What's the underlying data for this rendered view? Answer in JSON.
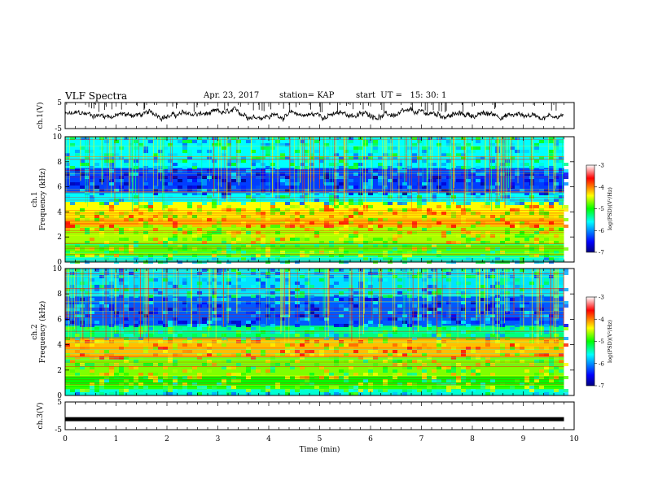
{
  "header": {
    "title": "VLF Spectra",
    "date": "Apr. 23, 2017",
    "station": "station= KAP",
    "start": "start  UT =   15: 30: 1"
  },
  "chart_data": [
    {
      "type": "line",
      "panel": "ch1 waveform",
      "ylabel": "ch.1(V)",
      "ylim": [
        -5,
        5
      ],
      "yticks": [
        5,
        -5
      ],
      "xlim": [
        0,
        10
      ],
      "series": [
        {
          "color": "#000000",
          "approx_mean": 0.3,
          "approx_amplitude": 1.5
        }
      ]
    },
    {
      "type": "heatmap",
      "panel": "ch1 spectrogram",
      "ylabel": "ch.1\nFrequency (kHz)",
      "ylim": [
        0,
        10
      ],
      "yticks": [
        0,
        2,
        4,
        6,
        8,
        10
      ],
      "colorbar": {
        "label": "log(PSD)(V²/Hz)",
        "range": [
          -7,
          -3
        ],
        "ticks": [
          -3,
          -4,
          -5,
          -6,
          -7
        ]
      },
      "bands": [
        {
          "f_range": [
            0,
            0.5
          ],
          "level": -5.5
        },
        {
          "f_range": [
            0.5,
            1.5
          ],
          "level": -4.8
        },
        {
          "f_range": [
            1.5,
            2.8
          ],
          "level": -4.6
        },
        {
          "f_range": [
            2.8,
            3.5
          ],
          "level": -4.2
        },
        {
          "f_range": [
            3.5,
            4.8
          ],
          "level": -4.4
        },
        {
          "f_range": [
            4.8,
            5.5
          ],
          "level": -5.6
        },
        {
          "f_range": [
            5.5,
            7.5
          ],
          "level": -6.3
        },
        {
          "f_range": [
            7.5,
            10
          ],
          "level": -5.6
        }
      ]
    },
    {
      "type": "heatmap",
      "panel": "ch2 spectrogram",
      "ylabel": "ch.2\nFrequency (kHz)",
      "ylim": [
        0,
        10
      ],
      "yticks": [
        0,
        2,
        4,
        6,
        8,
        10
      ],
      "colorbar": {
        "label": "log(PSD)(V²/Hz)",
        "range": [
          -7,
          -3
        ],
        "ticks": [
          -3,
          -4,
          -5,
          -6,
          -7
        ]
      },
      "bands": [
        {
          "f_range": [
            0,
            0.5
          ],
          "level": -5.5
        },
        {
          "f_range": [
            0.5,
            1.5
          ],
          "level": -5.0
        },
        {
          "f_range": [
            1.5,
            3.0
          ],
          "level": -4.7
        },
        {
          "f_range": [
            3.0,
            4.5
          ],
          "level": -4.2
        },
        {
          "f_range": [
            4.5,
            5.5
          ],
          "level": -5.3
        },
        {
          "f_range": [
            5.5,
            7.8
          ],
          "level": -6.2
        },
        {
          "f_range": [
            7.8,
            10
          ],
          "level": -5.7
        }
      ]
    },
    {
      "type": "line",
      "panel": "ch3 waveform",
      "ylabel": "ch.3(V)",
      "ylim": [
        -5,
        5
      ],
      "yticks": [
        5,
        -5
      ],
      "xlim": [
        0,
        10
      ],
      "xlabel": "Time (min)",
      "xticks": [
        0,
        1,
        2,
        3,
        4,
        5,
        6,
        7,
        8,
        9,
        10
      ],
      "series": [
        {
          "color": "#000000",
          "constant_value": -1.2
        }
      ]
    }
  ],
  "data_extent_min": 9.8
}
